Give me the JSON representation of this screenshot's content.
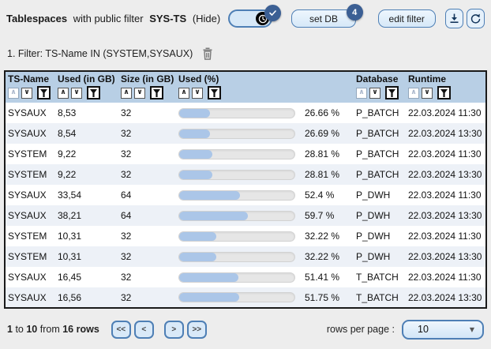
{
  "header": {
    "title_parts": {
      "bold1": "Tablespaces",
      "normal1": "with public filter",
      "bold2": "SYS-TS",
      "hide": "(Hide)"
    },
    "toggle": {
      "icon": "clock-icon",
      "badge_icon": "check-icon",
      "state": "on"
    },
    "set_db_button": "set DB",
    "set_db_badge": "4",
    "edit_filter_button": "edit filter",
    "download_icon": "download-icon",
    "refresh_icon": "refresh-icon"
  },
  "filter_bar": {
    "label": "1. Filter: TS-Name IN (SYSTEM,SYSAUX)",
    "delete_icon": "trash-icon"
  },
  "icons": {
    "sort_asc": "∧",
    "sort_desc": "∨",
    "dropdown_caret": "▼"
  },
  "table": {
    "columns": [
      {
        "label": "TS-Name",
        "asc_enabled": false
      },
      {
        "label": "Used (in GB)",
        "asc_enabled": true
      },
      {
        "label": "Size (in GB)",
        "asc_enabled": true
      },
      {
        "label": "Used (%)",
        "asc_enabled": true
      },
      {
        "label": "Database",
        "asc_enabled": false
      },
      {
        "label": "Runtime",
        "asc_enabled": false
      }
    ],
    "rows": [
      {
        "ts_name": "SYSAUX",
        "used_gb": "8,53",
        "size_gb": "32",
        "used_pct": 26.66,
        "used_pct_label": "26.66 %",
        "database": "P_BATCH",
        "runtime": "22.03.2024 11:30"
      },
      {
        "ts_name": "SYSAUX",
        "used_gb": "8,54",
        "size_gb": "32",
        "used_pct": 26.69,
        "used_pct_label": "26.69 %",
        "database": "P_BATCH",
        "runtime": "22.03.2024 13:30"
      },
      {
        "ts_name": "SYSTEM",
        "used_gb": "9,22",
        "size_gb": "32",
        "used_pct": 28.81,
        "used_pct_label": "28.81 %",
        "database": "P_BATCH",
        "runtime": "22.03.2024 11:30"
      },
      {
        "ts_name": "SYSTEM",
        "used_gb": "9,22",
        "size_gb": "32",
        "used_pct": 28.81,
        "used_pct_label": "28.81 %",
        "database": "P_BATCH",
        "runtime": "22.03.2024 13:30"
      },
      {
        "ts_name": "SYSAUX",
        "used_gb": "33,54",
        "size_gb": "64",
        "used_pct": 52.4,
        "used_pct_label": "52.4 %",
        "database": "P_DWH",
        "runtime": "22.03.2024 11:30"
      },
      {
        "ts_name": "SYSAUX",
        "used_gb": "38,21",
        "size_gb": "64",
        "used_pct": 59.7,
        "used_pct_label": "59.7 %",
        "database": "P_DWH",
        "runtime": "22.03.2024 13:30"
      },
      {
        "ts_name": "SYSTEM",
        "used_gb": "10,31",
        "size_gb": "32",
        "used_pct": 32.22,
        "used_pct_label": "32.22 %",
        "database": "P_DWH",
        "runtime": "22.03.2024 11:30"
      },
      {
        "ts_name": "SYSTEM",
        "used_gb": "10,31",
        "size_gb": "32",
        "used_pct": 32.22,
        "used_pct_label": "32.22 %",
        "database": "P_DWH",
        "runtime": "22.03.2024 13:30"
      },
      {
        "ts_name": "SYSAUX",
        "used_gb": "16,45",
        "size_gb": "32",
        "used_pct": 51.41,
        "used_pct_label": "51.41 %",
        "database": "T_BATCH",
        "runtime": "22.03.2024 11:30"
      },
      {
        "ts_name": "SYSAUX",
        "used_gb": "16,56",
        "size_gb": "32",
        "used_pct": 51.75,
        "used_pct_label": "51.75 %",
        "database": "T_BATCH",
        "runtime": "22.03.2024 13:30"
      }
    ]
  },
  "footer": {
    "range": {
      "start": "1",
      "to_word": "to",
      "end": "10",
      "from_word": "from",
      "total": "16",
      "rows_word": "rows"
    },
    "pager": [
      "<<",
      "<",
      ">",
      ">>"
    ],
    "rows_per_page_label": "rows per page :",
    "rows_per_page_value": "10"
  },
  "colors": {
    "header_band": "#b8cfe5",
    "accent_border": "#4e7fb5",
    "badge": "#3b5f94",
    "bar_fill": "#abc6e8",
    "row_alt": "#edf1f7"
  }
}
